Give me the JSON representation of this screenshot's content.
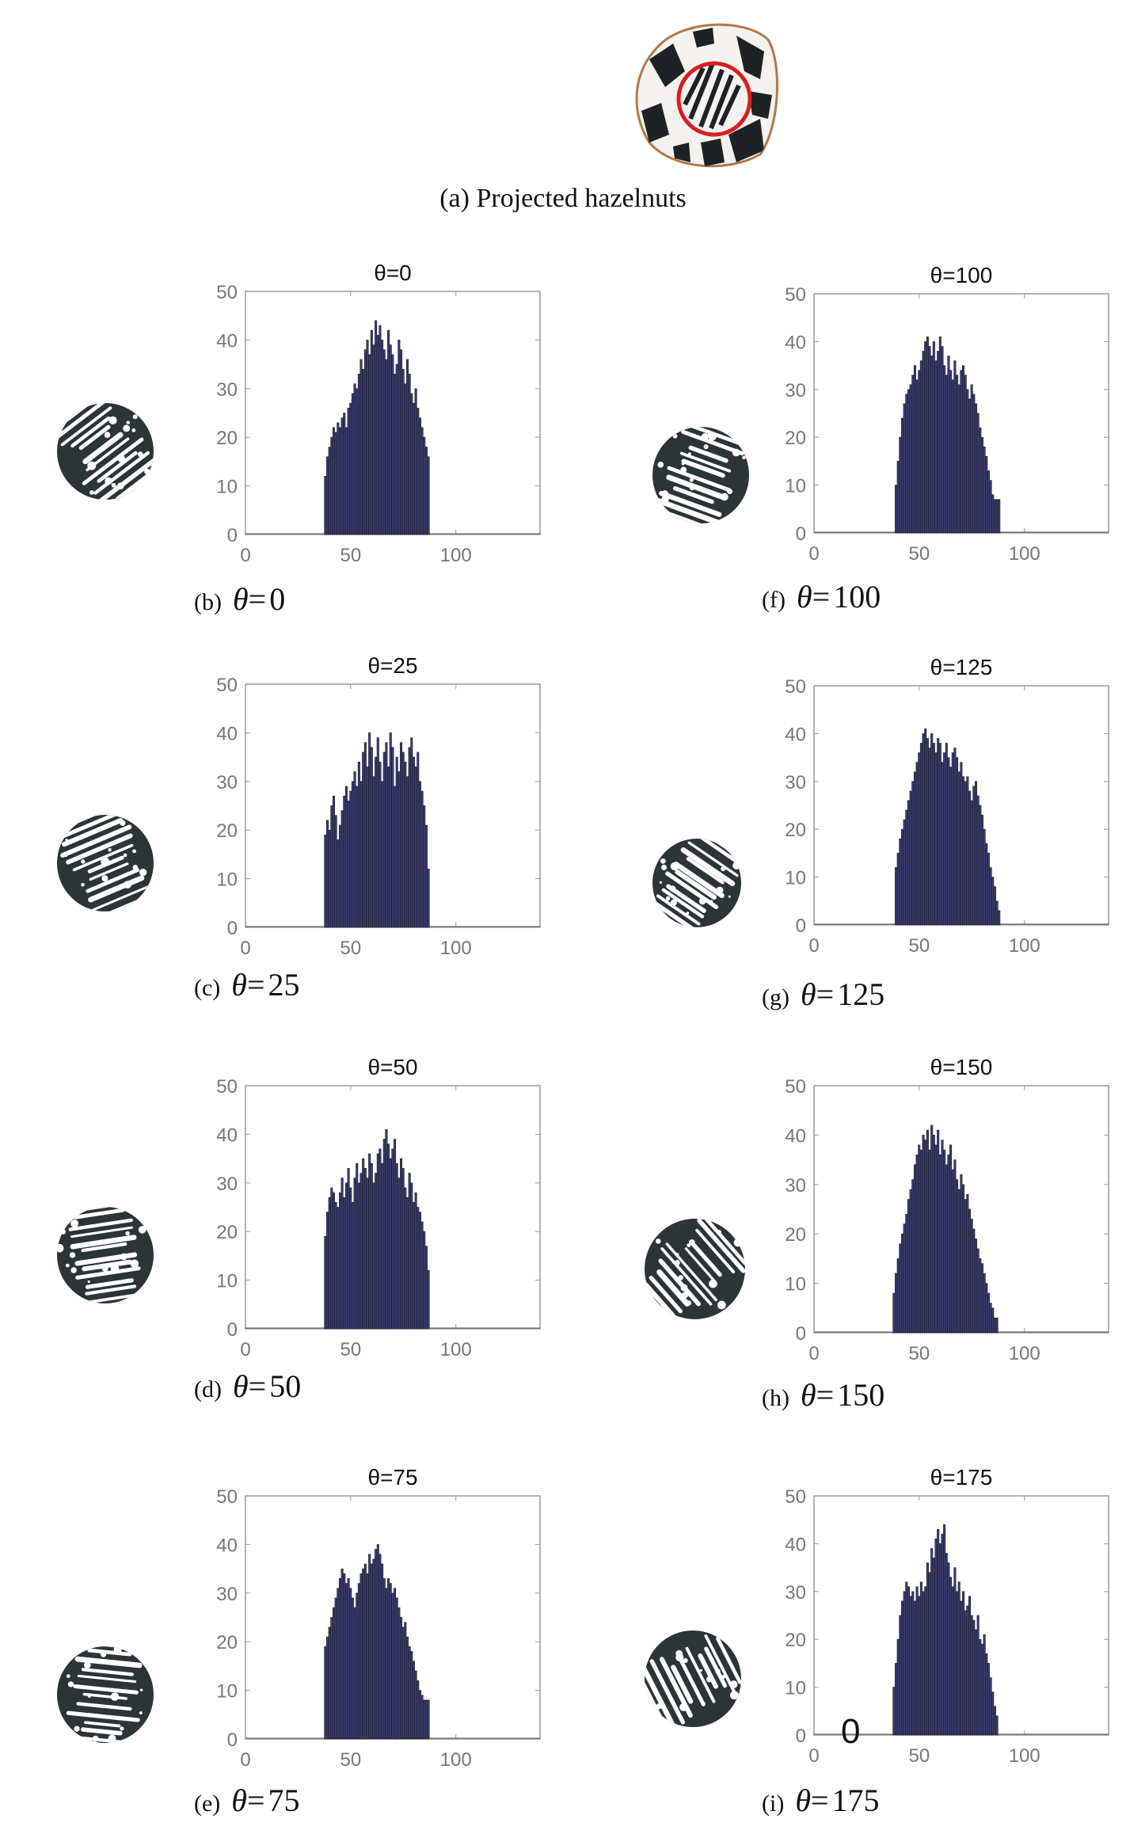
{
  "main_caption": "(a) Projected hazelnuts",
  "colors": {
    "bar_fill": "#3d3d6e",
    "bar_stroke": "#1a1a2e",
    "axis": "#999999",
    "tick_text": "#777777",
    "highlight_circle": "#d81f1f",
    "nut_dark": "#2c3436"
  },
  "panels": [
    {
      "tag": "(b)",
      "theta_symbol": "θ",
      "eq": "=",
      "value": "0"
    },
    {
      "tag": "(c)",
      "theta_symbol": "θ",
      "eq": "=",
      "value": "25"
    },
    {
      "tag": "(d)",
      "theta_symbol": "θ",
      "eq": "=",
      "value": "50"
    },
    {
      "tag": "(e)",
      "theta_symbol": "θ",
      "eq": "=",
      "value": "75"
    },
    {
      "tag": "(f)",
      "theta_symbol": "θ",
      "eq": "=",
      "value": "100"
    },
    {
      "tag": "(g)",
      "theta_symbol": "θ",
      "eq": "=",
      "value": "125"
    },
    {
      "tag": "(h)",
      "theta_symbol": "θ",
      "eq": "=",
      "value": "150"
    },
    {
      "tag": "(i)",
      "theta_symbol": "θ",
      "eq": "=",
      "value": "175"
    }
  ],
  "stray_text": "0",
  "chart_data": [
    {
      "type": "bar",
      "title": "θ=0",
      "xlim": [
        0,
        140
      ],
      "ylim": [
        0,
        50
      ],
      "xticks": [
        0,
        50,
        100
      ],
      "yticks": [
        0,
        10,
        20,
        30,
        40,
        50
      ],
      "x": [
        38,
        39,
        40,
        41,
        42,
        43,
        44,
        45,
        46,
        47,
        48,
        49,
        50,
        51,
        52,
        53,
        54,
        55,
        56,
        57,
        58,
        59,
        60,
        61,
        62,
        63,
        64,
        65,
        66,
        67,
        68,
        69,
        70,
        71,
        72,
        73,
        74,
        75,
        76,
        77,
        78,
        79,
        80,
        81,
        82,
        83,
        84,
        85,
        86,
        87
      ],
      "values": [
        12,
        16,
        18,
        20,
        22,
        21,
        23,
        22,
        24,
        25,
        22,
        26,
        27,
        29,
        31,
        30,
        33,
        36,
        34,
        38,
        40,
        37,
        42,
        39,
        44,
        41,
        43,
        40,
        38,
        36,
        42,
        39,
        37,
        33,
        35,
        40,
        38,
        34,
        31,
        36,
        33,
        29,
        27,
        30,
        26,
        24,
        22,
        20,
        18,
        16
      ]
    },
    {
      "type": "bar",
      "title": "θ=25",
      "xlim": [
        0,
        140
      ],
      "ylim": [
        0,
        50
      ],
      "xticks": [
        0,
        50,
        100
      ],
      "yticks": [
        0,
        10,
        20,
        30,
        40,
        50
      ],
      "x": [
        38,
        39,
        40,
        41,
        42,
        43,
        44,
        45,
        46,
        47,
        48,
        49,
        50,
        51,
        52,
        53,
        54,
        55,
        56,
        57,
        58,
        59,
        60,
        61,
        62,
        63,
        64,
        65,
        66,
        67,
        68,
        69,
        70,
        71,
        72,
        73,
        74,
        75,
        76,
        77,
        78,
        79,
        80,
        81,
        82,
        83,
        84,
        85,
        86,
        87
      ],
      "values": [
        19,
        22,
        20,
        25,
        27,
        23,
        18,
        21,
        24,
        27,
        29,
        26,
        28,
        30,
        32,
        29,
        34,
        30,
        36,
        38,
        33,
        40,
        37,
        31,
        35,
        39,
        34,
        30,
        36,
        38,
        33,
        40,
        37,
        29,
        35,
        32,
        38,
        36,
        34,
        31,
        37,
        39,
        35,
        33,
        36,
        30,
        28,
        25,
        21,
        12
      ]
    },
    {
      "type": "bar",
      "title": "θ=50",
      "xlim": [
        0,
        140
      ],
      "ylim": [
        0,
        50
      ],
      "xticks": [
        0,
        50,
        100
      ],
      "yticks": [
        0,
        10,
        20,
        30,
        40,
        50
      ],
      "x": [
        38,
        39,
        40,
        41,
        42,
        43,
        44,
        45,
        46,
        47,
        48,
        49,
        50,
        51,
        52,
        53,
        54,
        55,
        56,
        57,
        58,
        59,
        60,
        61,
        62,
        63,
        64,
        65,
        66,
        67,
        68,
        69,
        70,
        71,
        72,
        73,
        74,
        75,
        76,
        77,
        78,
        79,
        80,
        81,
        82,
        83,
        84,
        85,
        86,
        87
      ],
      "values": [
        19,
        24,
        27,
        29,
        28,
        26,
        25,
        28,
        31,
        27,
        30,
        33,
        29,
        26,
        31,
        34,
        30,
        32,
        35,
        33,
        31,
        36,
        34,
        30,
        32,
        36,
        37,
        34,
        39,
        41,
        38,
        35,
        37,
        39,
        34,
        31,
        35,
        33,
        29,
        27,
        32,
        30,
        26,
        28,
        25,
        24,
        22,
        20,
        17,
        12
      ]
    },
    {
      "type": "bar",
      "title": "θ=75",
      "xlim": [
        0,
        140
      ],
      "ylim": [
        0,
        50
      ],
      "xticks": [
        0,
        50,
        100
      ],
      "yticks": [
        0,
        10,
        20,
        30,
        40,
        50
      ],
      "x": [
        38,
        39,
        40,
        41,
        42,
        43,
        44,
        45,
        46,
        47,
        48,
        49,
        50,
        51,
        52,
        53,
        54,
        55,
        56,
        57,
        58,
        59,
        60,
        61,
        62,
        63,
        64,
        65,
        66,
        67,
        68,
        69,
        70,
        71,
        72,
        73,
        74,
        75,
        76,
        77,
        78,
        79,
        80,
        81,
        82,
        83,
        84,
        85,
        86,
        87
      ],
      "values": [
        19,
        21,
        23,
        25,
        27,
        29,
        31,
        33,
        35,
        34,
        32,
        33,
        31,
        29,
        27,
        30,
        32,
        34,
        35,
        36,
        34,
        38,
        36,
        37,
        39,
        40,
        38,
        36,
        33,
        31,
        33,
        32,
        30,
        31,
        29,
        27,
        25,
        23,
        24,
        21,
        19,
        18,
        16,
        14,
        12,
        10,
        9,
        8,
        8,
        8
      ]
    },
    {
      "type": "bar",
      "title": "θ=100",
      "xlim": [
        0,
        140
      ],
      "ylim": [
        0,
        50
      ],
      "xticks": [
        0,
        50,
        100
      ],
      "yticks": [
        0,
        10,
        20,
        30,
        40,
        50
      ],
      "x": [
        39,
        40,
        41,
        42,
        43,
        44,
        45,
        46,
        47,
        48,
        49,
        50,
        51,
        52,
        53,
        54,
        55,
        56,
        57,
        58,
        59,
        60,
        61,
        62,
        63,
        64,
        65,
        66,
        67,
        68,
        69,
        70,
        71,
        72,
        73,
        74,
        75,
        76,
        77,
        78,
        79,
        80,
        81,
        82,
        83,
        84,
        85,
        86,
        87,
        88
      ],
      "values": [
        10,
        15,
        20,
        24,
        27,
        29,
        30,
        31,
        33,
        35,
        32,
        34,
        36,
        38,
        40,
        41,
        39,
        37,
        40,
        36,
        38,
        41,
        39,
        35,
        33,
        37,
        34,
        32,
        36,
        33,
        31,
        34,
        35,
        33,
        30,
        28,
        31,
        29,
        27,
        25,
        22,
        20,
        18,
        16,
        13,
        11,
        8,
        7,
        7,
        7
      ]
    },
    {
      "type": "bar",
      "title": "θ=125",
      "xlim": [
        0,
        140
      ],
      "ylim": [
        0,
        50
      ],
      "xticks": [
        0,
        50,
        100
      ],
      "yticks": [
        0,
        10,
        20,
        30,
        40,
        50
      ],
      "x": [
        39,
        40,
        41,
        42,
        43,
        44,
        45,
        46,
        47,
        48,
        49,
        50,
        51,
        52,
        53,
        54,
        55,
        56,
        57,
        58,
        59,
        60,
        61,
        62,
        63,
        64,
        65,
        66,
        67,
        68,
        69,
        70,
        71,
        72,
        73,
        74,
        75,
        76,
        77,
        78,
        79,
        80,
        81,
        82,
        83,
        84,
        85,
        86,
        87,
        88
      ],
      "values": [
        12,
        15,
        18,
        20,
        22,
        24,
        26,
        28,
        30,
        32,
        34,
        36,
        38,
        40,
        41,
        39,
        37,
        40,
        38,
        36,
        39,
        38,
        34,
        36,
        38,
        35,
        33,
        36,
        37,
        35,
        32,
        34,
        31,
        30,
        31,
        28,
        26,
        29,
        30,
        27,
        25,
        23,
        20,
        17,
        15,
        12,
        10,
        8,
        5,
        3
      ]
    },
    {
      "type": "bar",
      "title": "θ=150",
      "xlim": [
        0,
        140
      ],
      "ylim": [
        0,
        50
      ],
      "xticks": [
        0,
        50,
        100
      ],
      "yticks": [
        0,
        10,
        20,
        30,
        40,
        50
      ],
      "x": [
        38,
        39,
        40,
        41,
        42,
        43,
        44,
        45,
        46,
        47,
        48,
        49,
        50,
        51,
        52,
        53,
        54,
        55,
        56,
        57,
        58,
        59,
        60,
        61,
        62,
        63,
        64,
        65,
        66,
        67,
        68,
        69,
        70,
        71,
        72,
        73,
        74,
        75,
        76,
        77,
        78,
        79,
        80,
        81,
        82,
        83,
        84,
        85,
        86,
        87
      ],
      "values": [
        8,
        12,
        15,
        18,
        20,
        22,
        24,
        27,
        29,
        31,
        34,
        36,
        38,
        37,
        40,
        39,
        41,
        37,
        42,
        40,
        38,
        41,
        36,
        39,
        37,
        34,
        36,
        38,
        33,
        35,
        31,
        29,
        32,
        30,
        27,
        28,
        25,
        23,
        21,
        19,
        17,
        15,
        14,
        12,
        10,
        8,
        6,
        5,
        3,
        3
      ]
    },
    {
      "type": "bar",
      "title": "θ=175",
      "xlim": [
        0,
        140
      ],
      "ylim": [
        0,
        50
      ],
      "xticks": [
        0,
        50,
        100
      ],
      "yticks": [
        0,
        10,
        20,
        30,
        40,
        50
      ],
      "x": [
        38,
        39,
        40,
        41,
        42,
        43,
        44,
        45,
        46,
        47,
        48,
        49,
        50,
        51,
        52,
        53,
        54,
        55,
        56,
        57,
        58,
        59,
        60,
        61,
        62,
        63,
        64,
        65,
        66,
        67,
        68,
        69,
        70,
        71,
        72,
        73,
        74,
        75,
        76,
        77,
        78,
        79,
        80,
        81,
        82,
        83,
        84,
        85,
        86,
        87
      ],
      "values": [
        10,
        15,
        20,
        25,
        28,
        30,
        32,
        31,
        29,
        30,
        28,
        31,
        29,
        32,
        30,
        31,
        36,
        34,
        39,
        37,
        41,
        43,
        40,
        42,
        44,
        38,
        36,
        33,
        31,
        35,
        30,
        32,
        28,
        30,
        26,
        27,
        29,
        25,
        24,
        22,
        25,
        20,
        19,
        21,
        17,
        15,
        12,
        9,
        6,
        4
      ]
    }
  ]
}
